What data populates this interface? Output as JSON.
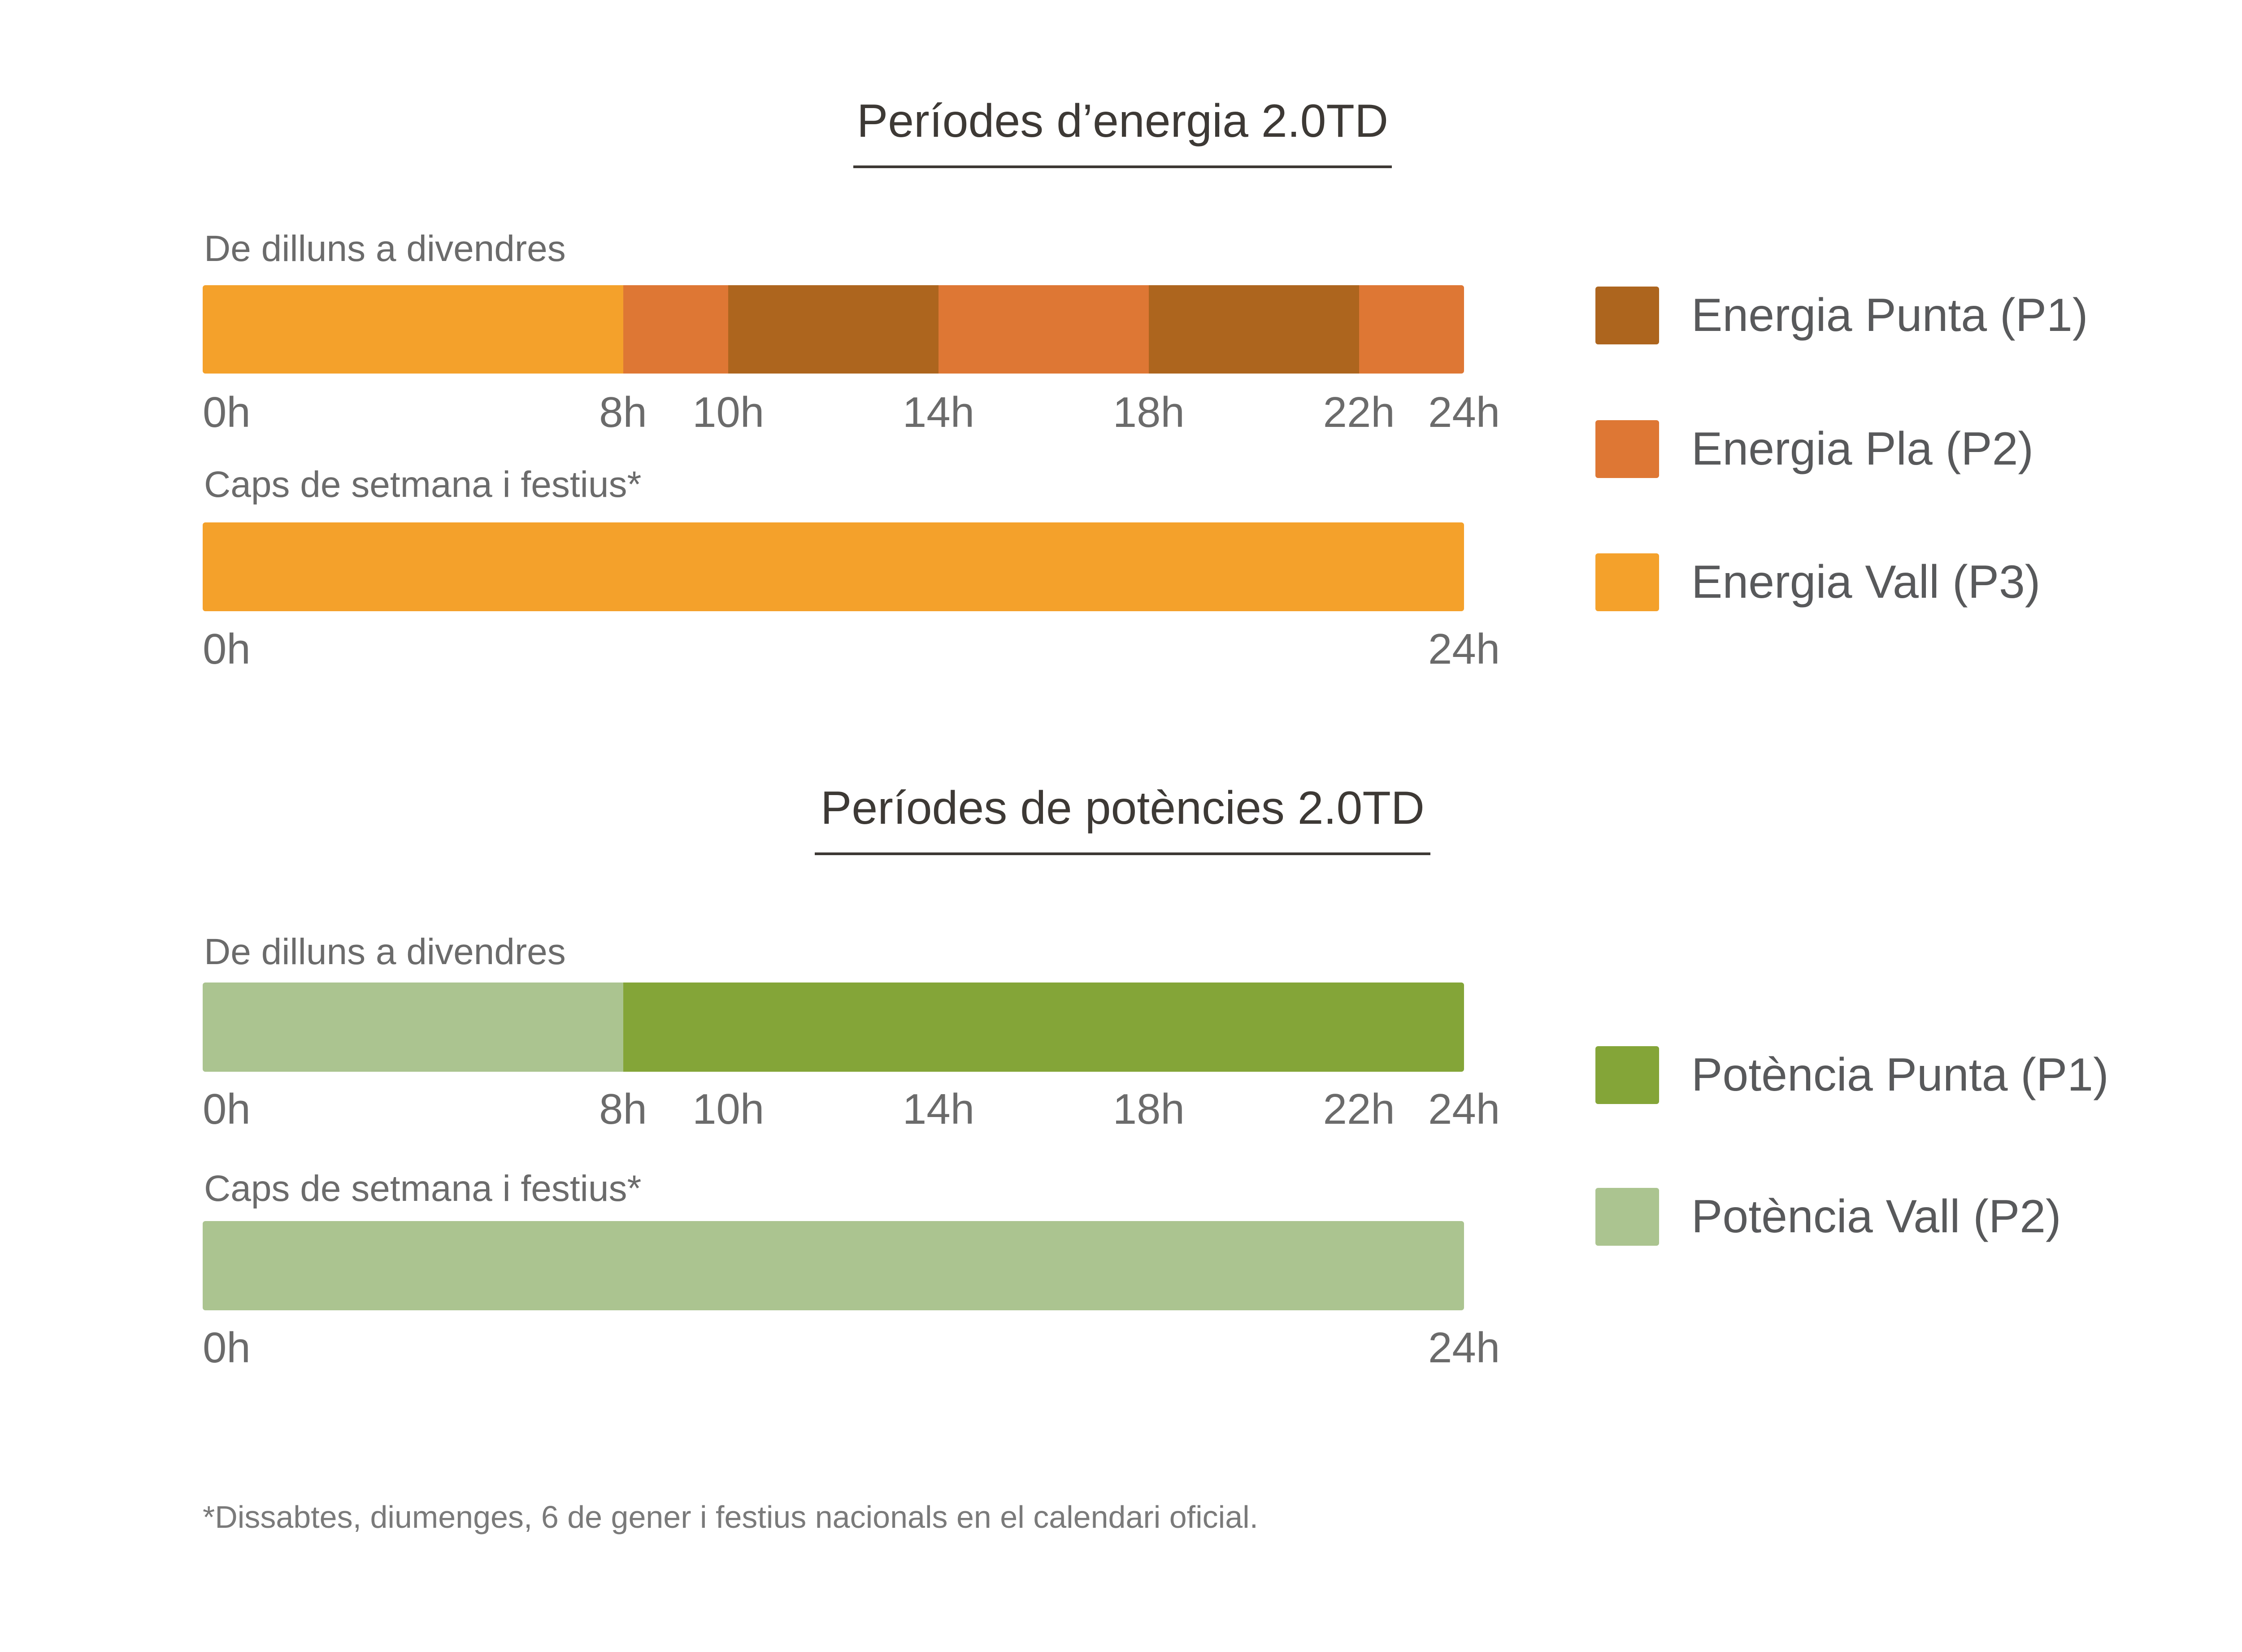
{
  "chart_data": [
    {
      "type": "bar",
      "subtype": "timeline",
      "title": "Períodes d’energia 2.0TD",
      "xlabel": "",
      "ylabel": "",
      "xlim": [
        0,
        24
      ],
      "rows": [
        {
          "label": "De dilluns a divendres",
          "segments": [
            {
              "start": 0,
              "end": 8,
              "period": "P3"
            },
            {
              "start": 8,
              "end": 10,
              "period": "P2"
            },
            {
              "start": 10,
              "end": 14,
              "period": "P1"
            },
            {
              "start": 14,
              "end": 18,
              "period": "P2"
            },
            {
              "start": 18,
              "end": 22,
              "period": "P1"
            },
            {
              "start": 22,
              "end": 24,
              "period": "P2"
            }
          ],
          "ticks": [
            {
              "value": 0,
              "label": "0h"
            },
            {
              "value": 8,
              "label": "8h"
            },
            {
              "value": 10,
              "label": "10h"
            },
            {
              "value": 14,
              "label": "14h"
            },
            {
              "value": 18,
              "label": "18h"
            },
            {
              "value": 22,
              "label": "22h"
            },
            {
              "value": 24,
              "label": "24h"
            }
          ]
        },
        {
          "label": "Caps de setmana i festius*",
          "segments": [
            {
              "start": 0,
              "end": 24,
              "period": "P3"
            }
          ],
          "ticks": [
            {
              "value": 0,
              "label": "0h"
            },
            {
              "value": 24,
              "label": "24h"
            }
          ]
        }
      ],
      "legend": [
        {
          "period": "P1",
          "label": "Energia Punta (P1)",
          "color": "#ad651e"
        },
        {
          "period": "P2",
          "label": "Energia Pla (P2)",
          "color": "#de7734"
        },
        {
          "period": "P3",
          "label": "Energia Vall (P3)",
          "color": "#f4a12b"
        }
      ],
      "legend_position": "right"
    },
    {
      "type": "bar",
      "subtype": "timeline",
      "title": "Períodes de potències 2.0TD",
      "xlabel": "",
      "ylabel": "",
      "xlim": [
        0,
        24
      ],
      "rows": [
        {
          "label": "De dilluns a divendres",
          "segments": [
            {
              "start": 0,
              "end": 8,
              "period": "P2"
            },
            {
              "start": 8,
              "end": 24,
              "period": "P1"
            }
          ],
          "ticks": [
            {
              "value": 0,
              "label": "0h"
            },
            {
              "value": 8,
              "label": "8h"
            },
            {
              "value": 10,
              "label": "10h"
            },
            {
              "value": 14,
              "label": "14h"
            },
            {
              "value": 18,
              "label": "18h"
            },
            {
              "value": 22,
              "label": "22h"
            },
            {
              "value": 24,
              "label": "24h"
            }
          ]
        },
        {
          "label": "Caps de setmana i festius*",
          "segments": [
            {
              "start": 0,
              "end": 24,
              "period": "P2"
            }
          ],
          "ticks": [
            {
              "value": 0,
              "label": "0h"
            },
            {
              "value": 24,
              "label": "24h"
            }
          ]
        }
      ],
      "legend": [
        {
          "period": "P1",
          "label": "Potència Punta (P1)",
          "color": "#84a538"
        },
        {
          "period": "P2",
          "label": "Potència Vall (P2)",
          "color": "#abc490"
        }
      ],
      "legend_position": "right"
    }
  ],
  "footnote": "*Dissabtes, diumenges, 6 de gener i festius nacionals en el calendari oficial."
}
